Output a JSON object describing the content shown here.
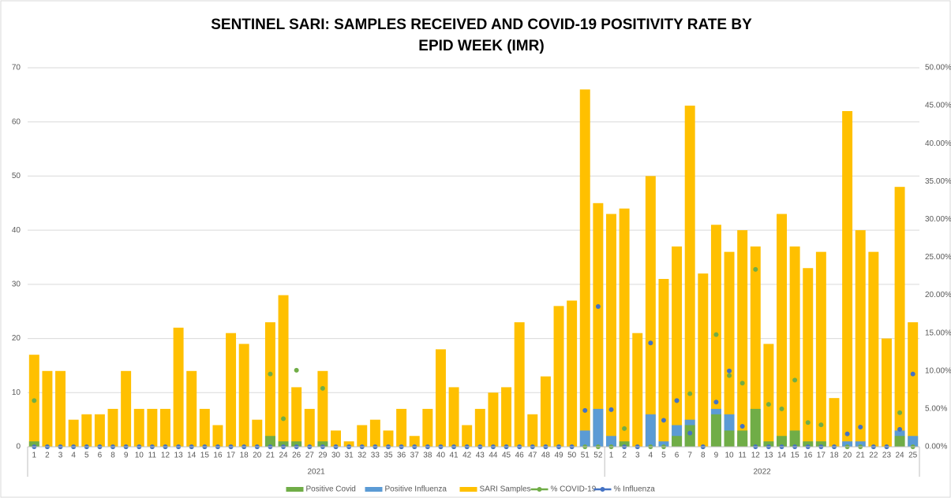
{
  "chart_data": {
    "type": "bar",
    "title": [
      "SENTINEL SARI: SAMPLES RECEIVED AND COVID-19 POSITIVITY RATE BY",
      "EPID WEEK (IMR)"
    ],
    "categories": [
      "1",
      "2",
      "3",
      "4",
      "5",
      "6",
      "8",
      "9",
      "10",
      "11",
      "12",
      "13",
      "14",
      "15",
      "16",
      "17",
      "18",
      "20",
      "21",
      "24",
      "26",
      "27",
      "29",
      "30",
      "31",
      "32",
      "33",
      "35",
      "36",
      "37",
      "38",
      "40",
      "41",
      "42",
      "43",
      "44",
      "45",
      "46",
      "47",
      "48",
      "49",
      "50",
      "51",
      "52",
      "1",
      "2",
      "3",
      "4",
      "5",
      "6",
      "7",
      "8",
      "9",
      "10",
      "11",
      "12",
      "13",
      "14",
      "15",
      "16",
      "17",
      "18",
      "20",
      "21",
      "22",
      "23",
      "24",
      "25"
    ],
    "groups": [
      {
        "name": "2021",
        "size": 44
      },
      {
        "name": "2022",
        "size": 24
      }
    ],
    "series": [
      {
        "name": "SARI Samples",
        "type": "bar",
        "color": "#ffc000",
        "values": [
          17,
          14,
          14,
          5,
          6,
          6,
          7,
          14,
          7,
          7,
          7,
          22,
          14,
          7,
          4,
          21,
          19,
          5,
          23,
          28,
          11,
          7,
          14,
          3,
          1,
          4,
          5,
          3,
          7,
          2,
          7,
          18,
          11,
          4,
          7,
          10,
          11,
          23,
          6,
          13,
          26,
          27,
          66,
          45,
          43,
          44,
          21,
          50,
          31,
          37,
          63,
          32,
          41,
          36,
          40,
          37,
          19,
          43,
          37,
          33,
          36,
          9,
          62,
          40,
          36,
          20,
          48,
          23
        ]
      },
      {
        "name": "Positive Influenza",
        "type": "bar",
        "color": "#5b9bd5",
        "values": [
          0,
          0,
          0,
          0,
          0,
          0,
          0,
          0,
          0,
          0,
          0,
          0,
          0,
          0,
          0,
          0,
          0,
          0,
          0,
          0,
          0,
          0,
          0,
          0,
          0,
          0,
          0,
          0,
          0,
          0,
          0,
          0,
          0,
          0,
          0,
          0,
          0,
          0,
          0,
          0,
          0,
          0,
          3,
          7,
          2,
          0,
          0,
          6,
          1,
          4,
          5,
          0,
          7,
          6,
          1,
          0,
          0,
          0,
          0,
          0,
          0,
          0,
          1,
          1,
          0,
          0,
          3,
          2
        ]
      },
      {
        "name": "Positive Covid",
        "type": "bar",
        "color": "#70ad47",
        "values": [
          1,
          0,
          0,
          0,
          0,
          0,
          0,
          0,
          0,
          0,
          0,
          0,
          0,
          0,
          0,
          0,
          0,
          0,
          2,
          1,
          1,
          0,
          1,
          0,
          0,
          0,
          0,
          0,
          0,
          0,
          0,
          0,
          0,
          0,
          0,
          0,
          0,
          0,
          0,
          0,
          0,
          0,
          0,
          0,
          0,
          1,
          0,
          0,
          0,
          2,
          4,
          0,
          6,
          3,
          3,
          7,
          1,
          2,
          3,
          1,
          1,
          0,
          0,
          0,
          0,
          0,
          2,
          0
        ]
      },
      {
        "name": "% COVID-19",
        "type": "line",
        "axis": "y2",
        "color": "#70ad47",
        "values": [
          6.1,
          0,
          0,
          0,
          0,
          0,
          0,
          0,
          0,
          0,
          0,
          0,
          0,
          0,
          0,
          0,
          0,
          0,
          9.6,
          3.7,
          10.1,
          0,
          7.7,
          0,
          0,
          0,
          0,
          0,
          0,
          0,
          0,
          0,
          0,
          0,
          0,
          0,
          0,
          0,
          0,
          0,
          0,
          0,
          0,
          0,
          0,
          2.4,
          0,
          0,
          0,
          6.1,
          7.0,
          0,
          14.8,
          9.4,
          8.4,
          23.4,
          5.6,
          5.0,
          8.8,
          3.2,
          2.9,
          0,
          0,
          0,
          0,
          0,
          4.5,
          0
        ]
      },
      {
        "name": "% Influenza",
        "type": "line",
        "axis": "y2",
        "color": "#4472c4",
        "values": [
          0,
          0,
          0,
          0,
          0,
          0,
          0,
          0,
          0,
          0,
          0,
          0,
          0,
          0,
          0,
          0,
          0,
          0,
          0,
          0,
          0,
          0,
          0,
          0,
          0,
          0,
          0,
          0,
          0,
          0,
          0,
          0,
          0,
          0,
          0,
          0,
          0,
          0,
          0,
          0,
          0,
          0,
          4.8,
          18.5,
          4.9,
          0,
          0,
          13.7,
          3.5,
          6.1,
          1.8,
          0,
          5.9,
          10.0,
          2.7,
          0,
          0,
          0,
          0,
          0,
          0,
          0,
          1.7,
          2.6,
          0,
          0,
          2.3,
          9.6
        ]
      }
    ],
    "legend_order": [
      2,
      1,
      0,
      3,
      4
    ],
    "ylim": [
      0,
      70
    ],
    "yticks": [
      0,
      10,
      20,
      30,
      40,
      50,
      60,
      70
    ],
    "y2lim": [
      0,
      50
    ],
    "y2ticks": [
      {
        "value": 0,
        "label": "0.00%"
      },
      {
        "value": 5,
        "label": "5.00%"
      },
      {
        "value": 10,
        "label": "10.00%"
      },
      {
        "value": 15,
        "label": "15.00%"
      },
      {
        "value": 20,
        "label": "20.00%"
      },
      {
        "value": 25,
        "label": "25.00%"
      },
      {
        "value": 30,
        "label": "30.00%"
      },
      {
        "value": 35,
        "label": "35.00%"
      },
      {
        "value": 40,
        "label": "40.00%"
      },
      {
        "value": 45,
        "label": "45.00%"
      },
      {
        "value": 50,
        "label": "50.00%"
      }
    ],
    "grid": true,
    "legend": "bottom"
  }
}
